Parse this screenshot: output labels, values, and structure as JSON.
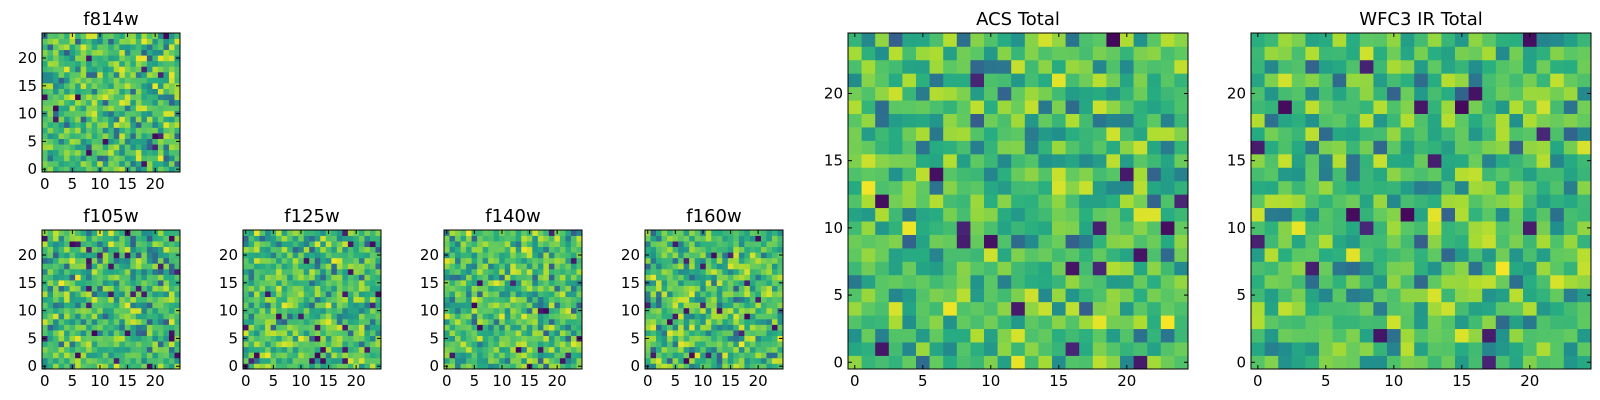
{
  "chart_data": [
    {
      "id": "f814w",
      "type": "heatmap",
      "title": "f814w",
      "size": 25,
      "seed": 11,
      "colormap": "viridis",
      "vrange": [
        0,
        1
      ],
      "xticks": [
        0,
        5,
        10,
        15,
        20
      ],
      "yticks": [
        0,
        5,
        10,
        15,
        20
      ],
      "xlim": [
        0,
        25
      ],
      "ylim": [
        0,
        25
      ]
    },
    {
      "id": "f105w",
      "type": "heatmap",
      "title": "f105w",
      "size": 25,
      "seed": 23,
      "colormap": "viridis",
      "vrange": [
        0,
        1
      ],
      "xticks": [
        0,
        5,
        10,
        15,
        20
      ],
      "yticks": [
        0,
        5,
        10,
        15,
        20
      ],
      "xlim": [
        0,
        25
      ],
      "ylim": [
        0,
        25
      ]
    },
    {
      "id": "f125w",
      "type": "heatmap",
      "title": "f125w",
      "size": 25,
      "seed": 37,
      "colormap": "viridis",
      "vrange": [
        0,
        1
      ],
      "xticks": [
        0,
        5,
        10,
        15,
        20
      ],
      "yticks": [
        0,
        5,
        10,
        15,
        20
      ],
      "xlim": [
        0,
        25
      ],
      "ylim": [
        0,
        25
      ]
    },
    {
      "id": "f140w",
      "type": "heatmap",
      "title": "f140w",
      "size": 25,
      "seed": 41,
      "colormap": "viridis",
      "vrange": [
        0,
        1
      ],
      "xticks": [
        0,
        5,
        10,
        15,
        20
      ],
      "yticks": [
        0,
        5,
        10,
        15,
        20
      ],
      "xlim": [
        0,
        25
      ],
      "ylim": [
        0,
        25
      ]
    },
    {
      "id": "f160w",
      "type": "heatmap",
      "title": "f160w",
      "size": 25,
      "seed": 53,
      "colormap": "viridis",
      "vrange": [
        0,
        1
      ],
      "xticks": [
        0,
        5,
        10,
        15,
        20
      ],
      "yticks": [
        0,
        5,
        10,
        15,
        20
      ],
      "xlim": [
        0,
        25
      ],
      "ylim": [
        0,
        25
      ]
    },
    {
      "id": "acs-total",
      "type": "heatmap",
      "title": "ACS Total",
      "size": 25,
      "seed": 67,
      "colormap": "viridis",
      "vrange": [
        0,
        1
      ],
      "xticks": [
        0,
        5,
        10,
        15,
        20
      ],
      "yticks": [
        0,
        5,
        10,
        15,
        20
      ],
      "xlim": [
        0,
        25
      ],
      "ylim": [
        0,
        25
      ]
    },
    {
      "id": "wfc3-ir-total",
      "type": "heatmap",
      "title": "WFC3 IR Total",
      "size": 25,
      "seed": 79,
      "colormap": "viridis",
      "vrange": [
        0,
        1
      ],
      "xticks": [
        0,
        5,
        10,
        15,
        20
      ],
      "yticks": [
        0,
        5,
        10,
        15,
        20
      ],
      "xlim": [
        0,
        25
      ],
      "ylim": [
        0,
        25
      ]
    }
  ]
}
